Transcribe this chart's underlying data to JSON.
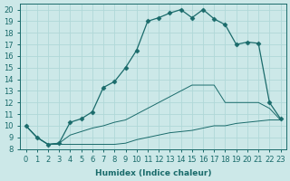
{
  "title": "",
  "xlabel": "Humidex (Indice chaleur)",
  "xlim": [
    -0.5,
    23.5
  ],
  "ylim": [
    8,
    20.5
  ],
  "yticks": [
    8,
    9,
    10,
    11,
    12,
    13,
    14,
    15,
    16,
    17,
    18,
    19,
    20
  ],
  "xticks": [
    0,
    1,
    2,
    3,
    4,
    5,
    6,
    7,
    8,
    9,
    10,
    11,
    12,
    13,
    14,
    15,
    16,
    17,
    18,
    19,
    20,
    21,
    22,
    23
  ],
  "bg_color": "#cce8e8",
  "line_color": "#1a6b6b",
  "grid_color": "#b0d8d8",
  "line1_x": [
    0,
    1,
    2,
    3,
    4,
    5,
    6,
    7,
    8,
    9,
    10,
    11,
    12,
    13,
    14,
    15,
    16,
    17,
    18,
    19,
    20,
    21,
    22,
    23
  ],
  "line1_y": [
    10.0,
    9.0,
    8.4,
    8.4,
    8.4,
    8.4,
    8.4,
    8.4,
    8.4,
    8.5,
    8.8,
    9.0,
    9.2,
    9.4,
    9.5,
    9.6,
    9.8,
    10.0,
    10.0,
    10.2,
    10.3,
    10.4,
    10.5,
    10.5
  ],
  "line2_x": [
    0,
    1,
    2,
    3,
    4,
    5,
    6,
    7,
    8,
    9,
    10,
    11,
    12,
    13,
    14,
    15,
    16,
    17,
    18,
    19,
    20,
    21,
    22,
    23
  ],
  "line2_y": [
    10.0,
    9.0,
    8.4,
    8.5,
    9.2,
    9.5,
    9.8,
    10.0,
    10.3,
    10.5,
    11.0,
    11.5,
    12.0,
    12.5,
    13.0,
    13.5,
    13.5,
    13.5,
    12.0,
    12.0,
    12.0,
    12.0,
    11.5,
    10.5
  ],
  "line3_x": [
    0,
    1,
    2,
    3,
    4,
    5,
    6,
    7,
    8,
    9,
    10,
    11,
    12,
    13,
    14,
    15,
    16,
    17,
    18,
    19,
    20,
    21,
    22,
    23
  ],
  "line3_y": [
    10.0,
    9.0,
    8.4,
    8.5,
    10.3,
    10.6,
    11.2,
    13.3,
    13.8,
    15.0,
    16.5,
    19.0,
    19.3,
    19.7,
    20.0,
    19.3,
    20.0,
    19.2,
    18.7,
    17.0,
    17.2,
    17.1,
    12.0,
    10.6
  ],
  "font_size": 6.5,
  "marker_size": 2.5
}
